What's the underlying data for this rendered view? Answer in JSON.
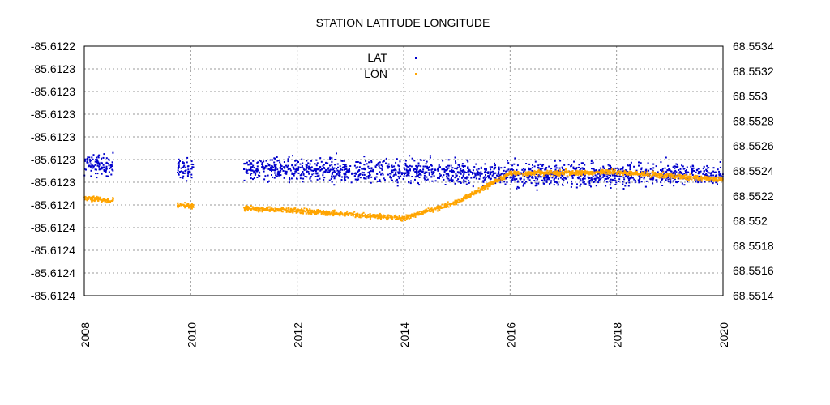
{
  "chart_data": {
    "type": "scatter",
    "title": "STATION LATITUDE LONGITUDE",
    "xlabel": "",
    "ylabel_left": "",
    "ylabel_right": "",
    "x_ticks": [
      "2008",
      "2010",
      "2012",
      "2014",
      "2016",
      "2018",
      "2020"
    ],
    "x_range": [
      2008,
      2020
    ],
    "y_left_ticks": [
      "-85.6122",
      "-85.6123",
      "-85.6123",
      "-85.6123",
      "-85.6123",
      "-85.6123",
      "-85.6123",
      "-85.6124",
      "-85.6124",
      "-85.6124",
      "-85.6124",
      "-85.6124"
    ],
    "y_left_range": [
      -85.6124,
      -85.6122
    ],
    "y_right_ticks": [
      "68.5534",
      "68.5532",
      "68.553",
      "68.5528",
      "68.5526",
      "68.5524",
      "68.5522",
      "68.552",
      "68.5518",
      "68.5516",
      "68.5514"
    ],
    "y_right_range": [
      68.5514,
      68.5534
    ],
    "grid": true,
    "legend_position": "top-center",
    "series": [
      {
        "name": "LAT",
        "axis": "left",
        "color": "#0000cc",
        "center_trend": [
          [
            2008.0,
            -85.612295
          ],
          [
            2010.0,
            -85.612298
          ],
          [
            2012.0,
            -85.612299
          ],
          [
            2014.0,
            -85.6123
          ],
          [
            2016.0,
            -85.612303
          ],
          [
            2018.0,
            -85.612303
          ],
          [
            2020.0,
            -85.612303
          ]
        ],
        "spread": 4.5e-06,
        "segments": [
          [
            2008.0,
            2008.55
          ],
          [
            2009.75,
            2010.05
          ],
          [
            2011.0,
            2015.85
          ],
          [
            2015.85,
            2020.0
          ]
        ]
      },
      {
        "name": "LON",
        "axis": "right",
        "color": "#ffa500",
        "center_trend": [
          [
            2008.0,
            68.55218
          ],
          [
            2010.0,
            68.55212
          ],
          [
            2012.0,
            68.55208
          ],
          [
            2014.0,
            68.55202
          ],
          [
            2015.0,
            68.55215
          ],
          [
            2016.0,
            68.55238
          ],
          [
            2018.0,
            68.55239
          ],
          [
            2020.0,
            68.55233
          ]
        ],
        "spread": 9.5e-06,
        "segments": [
          [
            2008.0,
            2008.55
          ],
          [
            2009.75,
            2010.05
          ],
          [
            2011.0,
            2015.85
          ],
          [
            2015.85,
            2020.0
          ]
        ]
      }
    ]
  }
}
